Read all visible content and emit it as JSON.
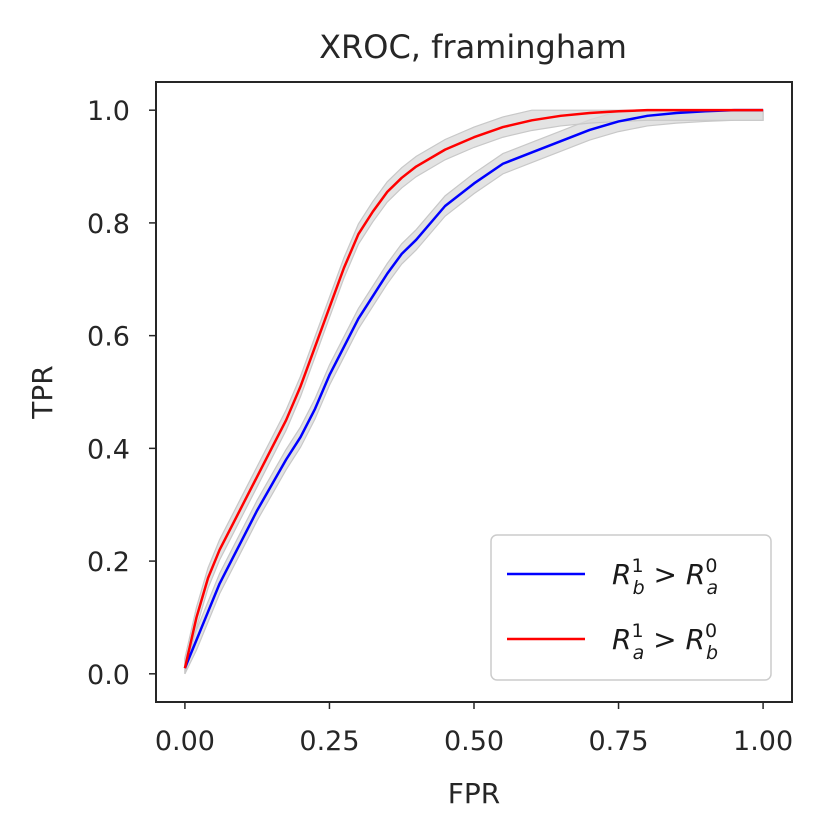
{
  "chart_data": {
    "type": "line",
    "title": "XROC, framingham",
    "xlabel": "FPR",
    "ylabel": "TPR",
    "xlim": [
      -0.05,
      1.05
    ],
    "ylim": [
      -0.05,
      1.05
    ],
    "xticks": [
      "0.00",
      "0.25",
      "0.50",
      "0.75",
      "1.00"
    ],
    "xtick_values": [
      0,
      0.25,
      0.5,
      0.75,
      1.0
    ],
    "yticks": [
      "0.0",
      "0.2",
      "0.4",
      "0.6",
      "0.8",
      "1.0"
    ],
    "ytick_values": [
      0,
      0.2,
      0.4,
      0.6,
      0.8,
      1.0
    ],
    "grid": false,
    "legend_position": "lower-right",
    "confidence_band_color": "#d9d9d9",
    "series": [
      {
        "name": "R_b^1 > R_a^0",
        "label_base": "R",
        "label_sub1": "b",
        "label_sup1": "1",
        "label_op": ">",
        "label_base2": "R",
        "label_sub2": "a",
        "label_sup2": "0",
        "color": "#0000ff",
        "band": 0.018,
        "x": [
          0.0,
          0.02,
          0.04,
          0.06,
          0.08,
          0.1,
          0.125,
          0.15,
          0.175,
          0.2,
          0.225,
          0.25,
          0.275,
          0.3,
          0.325,
          0.35,
          0.375,
          0.4,
          0.45,
          0.5,
          0.55,
          0.6,
          0.65,
          0.7,
          0.75,
          0.8,
          0.85,
          0.9,
          0.95,
          1.0
        ],
        "y": [
          0.01,
          0.06,
          0.11,
          0.16,
          0.2,
          0.24,
          0.29,
          0.335,
          0.38,
          0.42,
          0.47,
          0.53,
          0.58,
          0.63,
          0.67,
          0.71,
          0.745,
          0.77,
          0.83,
          0.87,
          0.905,
          0.925,
          0.945,
          0.965,
          0.98,
          0.99,
          0.995,
          0.998,
          1.0,
          1.0
        ]
      },
      {
        "name": "R_a^1 > R_b^0",
        "label_base": "R",
        "label_sub1": "a",
        "label_sup1": "1",
        "label_op": ">",
        "label_base2": "R",
        "label_sub2": "b",
        "label_sup2": "0",
        "color": "#ff0000",
        "band": 0.018,
        "x": [
          0.0,
          0.02,
          0.04,
          0.06,
          0.08,
          0.1,
          0.125,
          0.15,
          0.175,
          0.2,
          0.225,
          0.25,
          0.275,
          0.3,
          0.325,
          0.35,
          0.375,
          0.4,
          0.45,
          0.5,
          0.55,
          0.6,
          0.65,
          0.7,
          0.75,
          0.8,
          0.85,
          0.9,
          0.95,
          1.0
        ],
        "y": [
          0.01,
          0.1,
          0.17,
          0.22,
          0.26,
          0.3,
          0.35,
          0.4,
          0.45,
          0.51,
          0.58,
          0.65,
          0.72,
          0.78,
          0.82,
          0.855,
          0.88,
          0.9,
          0.93,
          0.952,
          0.97,
          0.982,
          0.99,
          0.995,
          0.998,
          1.0,
          1.0,
          1.0,
          1.0,
          1.0
        ]
      }
    ]
  }
}
